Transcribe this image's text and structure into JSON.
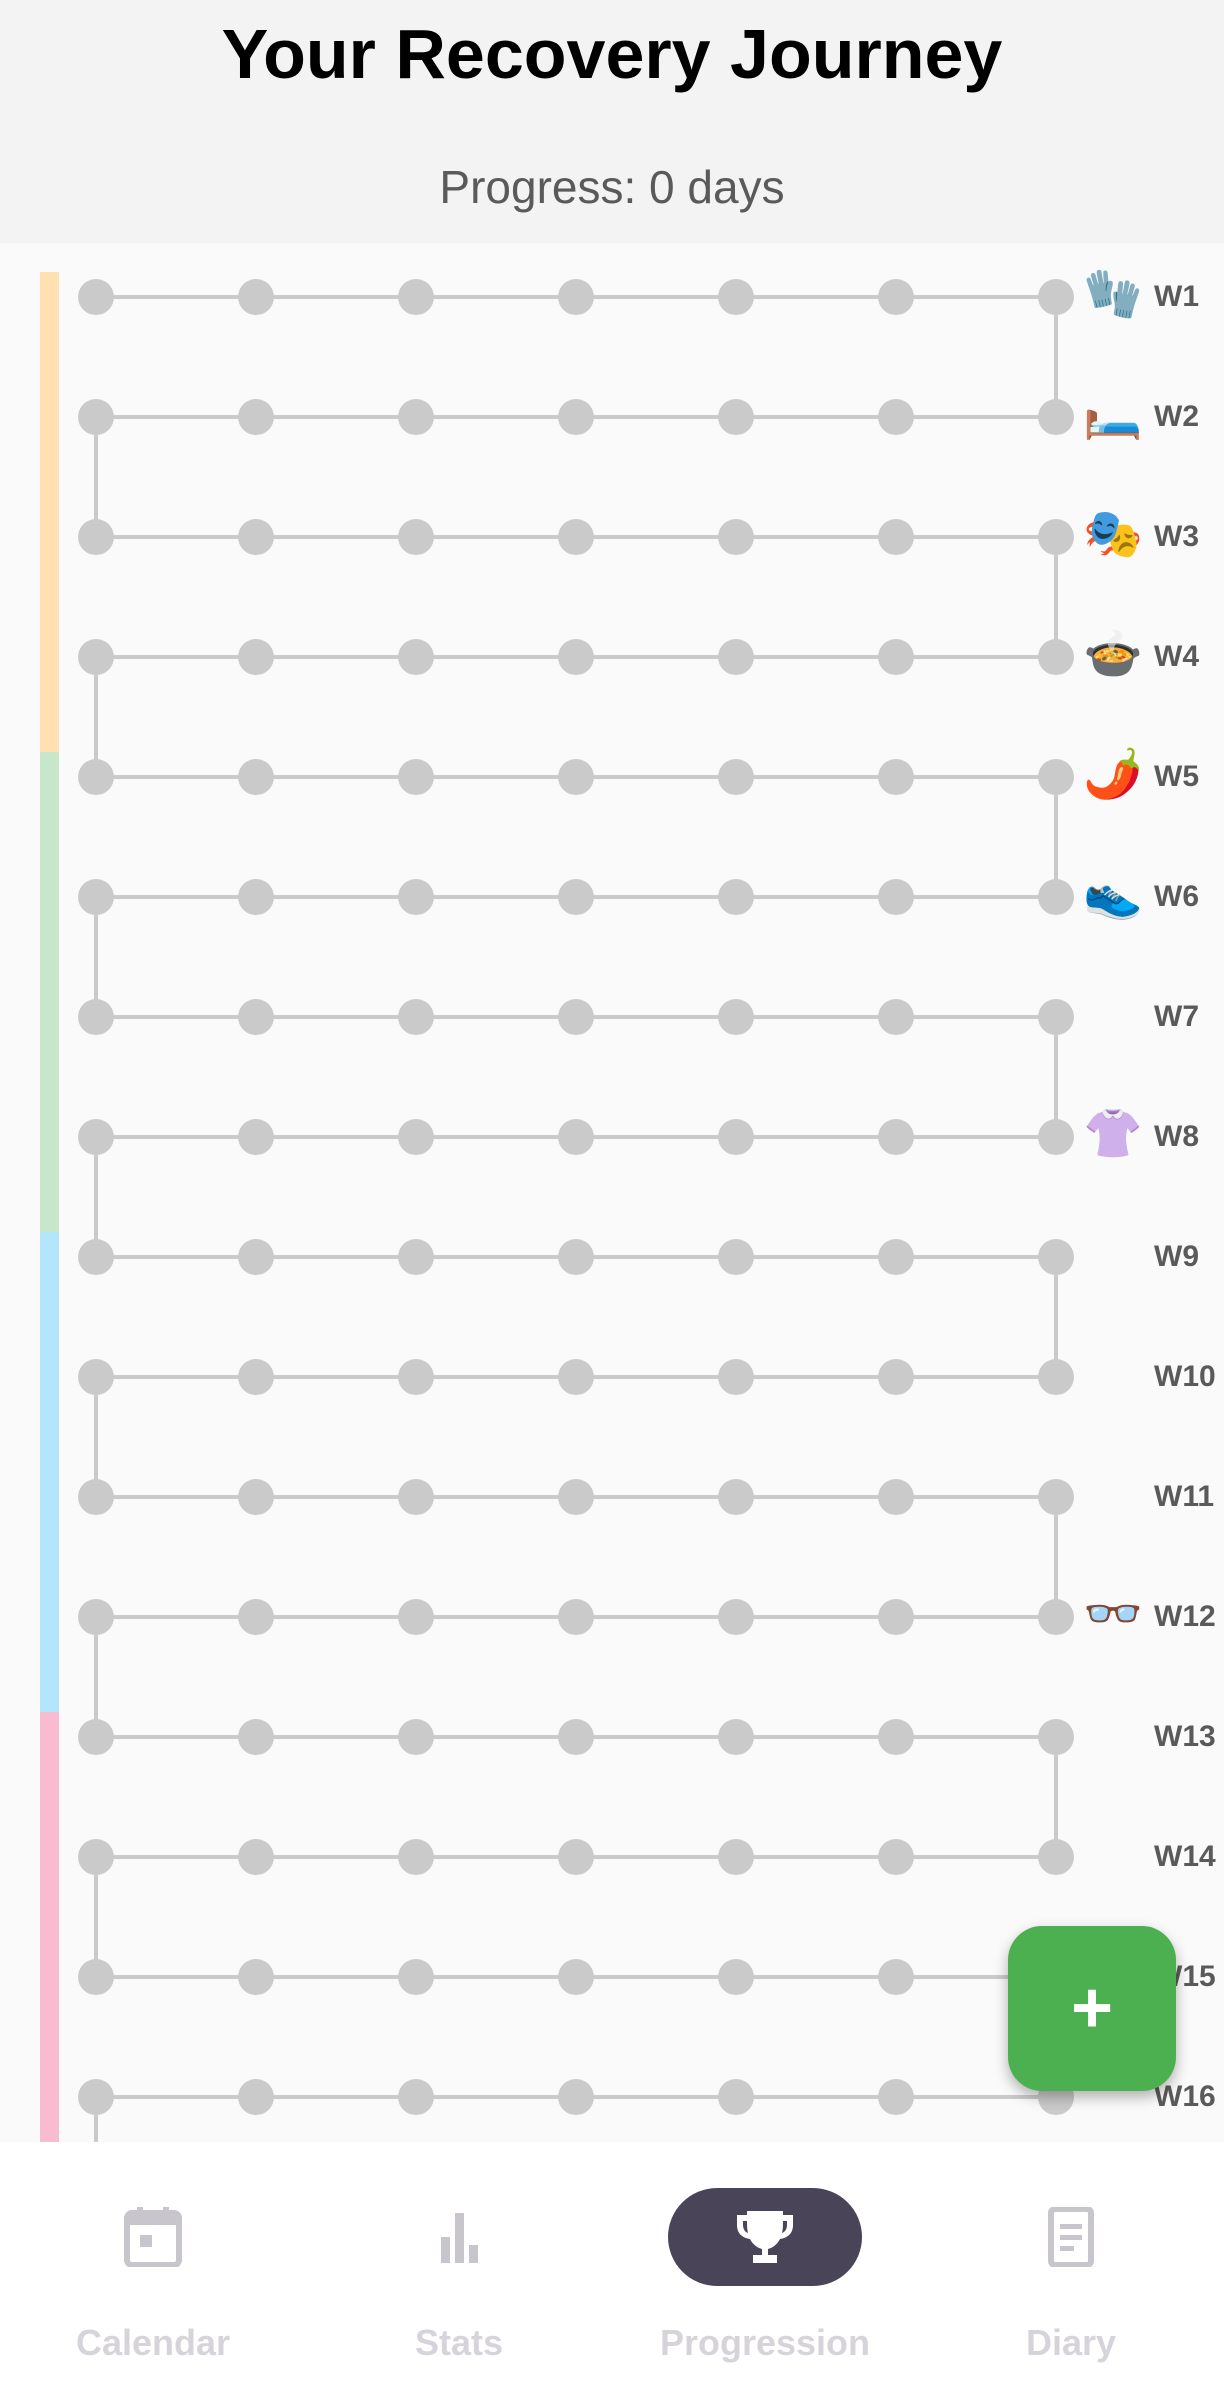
{
  "header": {
    "title": "Your Recovery Journey",
    "progress_text": "Progress: 0 days"
  },
  "colors": {
    "dot": "#cacaca",
    "fab": "#4caf50",
    "active_nav_pill": "#4a4458",
    "nav_label": "#d7d3db"
  },
  "journey": {
    "days_per_week": 7,
    "progress_days": 0,
    "phases": [
      {
        "color": "#ffe0b2",
        "weeks": 4
      },
      {
        "color": "#c8e6c9",
        "weeks": 4
      },
      {
        "color": "#b3e5fc",
        "weeks": 4
      },
      {
        "color": "#f8bbd0",
        "weeks": 4
      }
    ],
    "weeks": [
      {
        "label": "W1",
        "icon": "🧤",
        "icon_name": "gloves-icon"
      },
      {
        "label": "W2",
        "icon": "🛏️",
        "icon_name": "bed-icon"
      },
      {
        "label": "W3",
        "icon": "🎭",
        "icon_name": "theater-masks-icon"
      },
      {
        "label": "W4",
        "icon": "🍲",
        "icon_name": "pot-of-food-icon"
      },
      {
        "label": "W5",
        "icon": "🌶️",
        "icon_name": "chili-pepper-icon"
      },
      {
        "label": "W6",
        "icon": "👟",
        "icon_name": "sneaker-icon"
      },
      {
        "label": "W7",
        "icon": "",
        "icon_name": ""
      },
      {
        "label": "W8",
        "icon": "👚",
        "icon_name": "blouse-icon"
      },
      {
        "label": "W9",
        "icon": "",
        "icon_name": ""
      },
      {
        "label": "W10",
        "icon": "",
        "icon_name": ""
      },
      {
        "label": "W11",
        "icon": "",
        "icon_name": ""
      },
      {
        "label": "W12",
        "icon": "👓",
        "icon_name": "glasses-icon"
      },
      {
        "label": "W13",
        "icon": "",
        "icon_name": ""
      },
      {
        "label": "W14",
        "icon": "",
        "icon_name": ""
      },
      {
        "label": "W15",
        "icon": "",
        "icon_name": ""
      },
      {
        "label": "W16",
        "icon": "",
        "icon_name": ""
      }
    ]
  },
  "fab": {
    "label": "+",
    "icon": "plus-icon"
  },
  "bottom_nav": {
    "items": [
      {
        "label": "Calendar",
        "icon": "calendar-icon"
      },
      {
        "label": "Stats",
        "icon": "bar-chart-icon"
      },
      {
        "label": "Progression",
        "icon": "trophy-icon",
        "selected": true
      },
      {
        "label": "Diary",
        "icon": "document-icon"
      }
    ]
  }
}
